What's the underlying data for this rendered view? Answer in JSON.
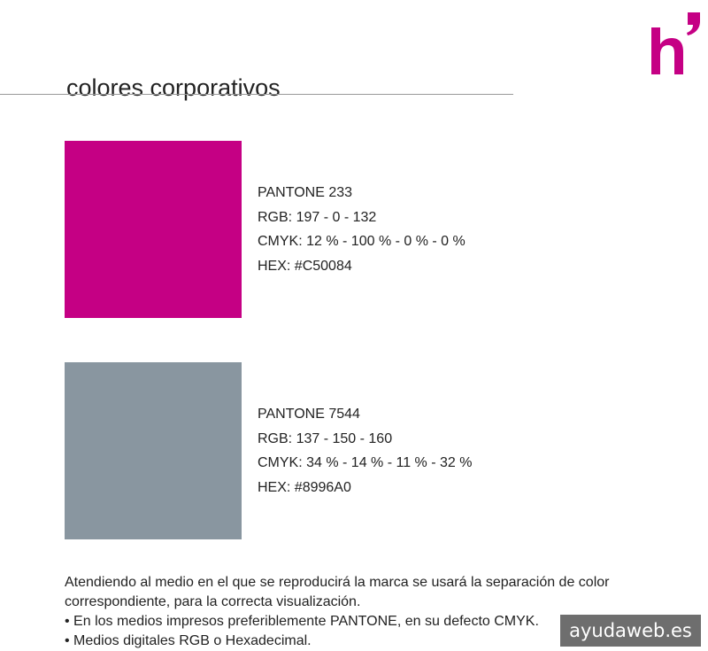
{
  "header": {
    "title": "colores corporativos",
    "logo_text": "h'"
  },
  "colors": [
    {
      "hex_color": "#C50084",
      "pantone": "PANTONE 233",
      "rgb": "RGB: 197 - 0 - 132",
      "cmyk": "CMYK: 12 % - 100 % - 0 % - 0 %",
      "hex": "HEX: #C50084"
    },
    {
      "hex_color": "#8996A0",
      "pantone": "PANTONE 7544",
      "rgb": "RGB: 137 - 150 - 160",
      "cmyk": "CMYK: 34 % - 14 % - 11 % - 32 %",
      "hex": "HEX: #8996A0"
    }
  ],
  "notes": {
    "intro": "Atendiendo al medio en el que se reproducirá la marca se usará la separación de color correspondiente, para la correcta visualización.",
    "bullets": [
      "• En los medios impresos preferiblemente PANTONE, en su defecto CMYK.",
      "• Medios digitales RGB o Hexadecimal."
    ]
  },
  "watermark": "ayudaweb.es"
}
